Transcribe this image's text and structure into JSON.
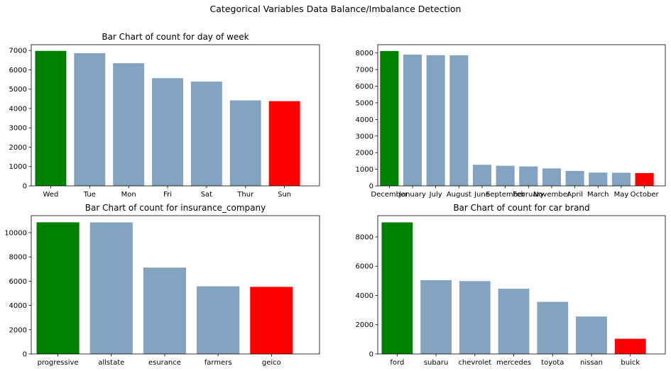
{
  "suptitle": "Categorical Variables Data Balance/Imbalance Detection",
  "colors": {
    "max": "#008000",
    "min": "#ff0000",
    "default": "#84a3c1"
  },
  "chart_data": [
    {
      "type": "bar",
      "title": "Bar Chart of count for day of week",
      "categories": [
        "Wed",
        "Tue",
        "Mon",
        "Fri",
        "Sat",
        "Thur",
        "Sun"
      ],
      "values": [
        6980,
        6860,
        6340,
        5570,
        5390,
        4420,
        4380
      ],
      "ylim": [
        0,
        7300
      ],
      "yticks": [
        0,
        1000,
        2000,
        3000,
        4000,
        5000,
        6000,
        7000
      ],
      "xlabel": "",
      "ylabel": "",
      "grid": false
    },
    {
      "type": "bar",
      "title": "",
      "categories": [
        "December",
        "January",
        "July",
        "August",
        "June",
        "September",
        "February",
        "November",
        "April",
        "March",
        "May",
        "October"
      ],
      "values": [
        8120,
        7900,
        7870,
        7860,
        1270,
        1210,
        1170,
        1050,
        900,
        800,
        790,
        770
      ],
      "ylim": [
        0,
        8500
      ],
      "yticks": [
        0,
        1000,
        2000,
        3000,
        4000,
        5000,
        6000,
        7000,
        8000
      ],
      "xlabel": "",
      "ylabel": "",
      "grid": false
    },
    {
      "type": "bar",
      "title": "Bar Chart of count for insurance_company",
      "categories": [
        "progressive",
        "allstate",
        "esurance",
        "farmers",
        "geico"
      ],
      "values": [
        10850,
        10840,
        7120,
        5580,
        5530
      ],
      "ylim": [
        0,
        11400
      ],
      "yticks": [
        0,
        2000,
        4000,
        6000,
        8000,
        10000
      ],
      "xlabel": "",
      "ylabel": "",
      "grid": false
    },
    {
      "type": "bar",
      "title": "Bar Chart of count for car brand",
      "categories": [
        "ford",
        "subaru",
        "chevrolet",
        "mercedes",
        "toyota",
        "nissan",
        "buick"
      ],
      "values": [
        8990,
        5040,
        4980,
        4460,
        3560,
        2560,
        1040
      ],
      "ylim": [
        0,
        9450
      ],
      "yticks": [
        0,
        2000,
        4000,
        6000,
        8000
      ],
      "xlabel": "",
      "ylabel": "",
      "grid": false
    }
  ]
}
